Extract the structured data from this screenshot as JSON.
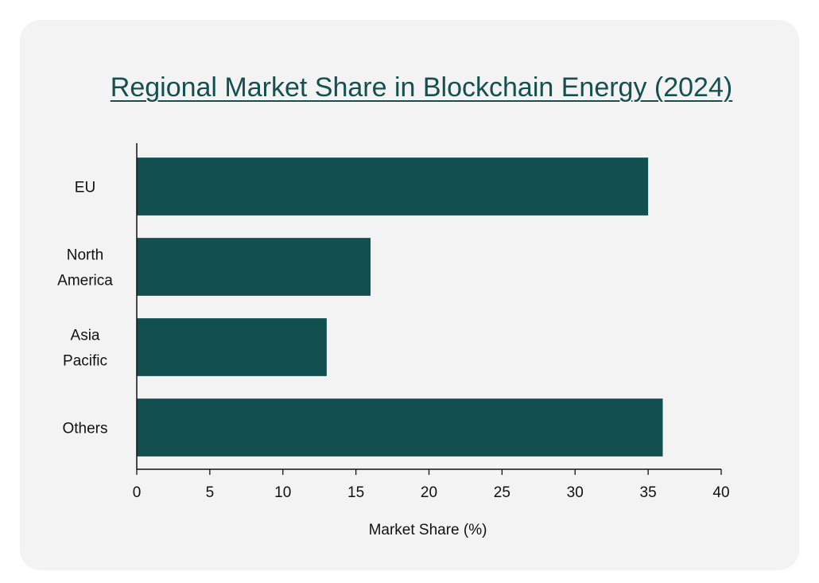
{
  "chart_data": {
    "type": "bar",
    "orientation": "horizontal",
    "title": "Regional Market Share in Blockchain Energy (2024)",
    "xlabel": "Market Share (%)",
    "ylabel": "",
    "categories": [
      [
        "EU"
      ],
      [
        "North",
        "America"
      ],
      [
        "Asia",
        "Pacific"
      ],
      [
        "Others"
      ]
    ],
    "values": [
      35,
      16,
      13,
      36
    ],
    "xlim": [
      0,
      40
    ],
    "xticks": [
      "0",
      "5",
      "10",
      "15",
      "20",
      "25",
      "30",
      "35",
      "40"
    ],
    "grid": false,
    "bar_color": "#12504f",
    "title_color": "#154f4f",
    "background_color": "#f3f3f3"
  }
}
